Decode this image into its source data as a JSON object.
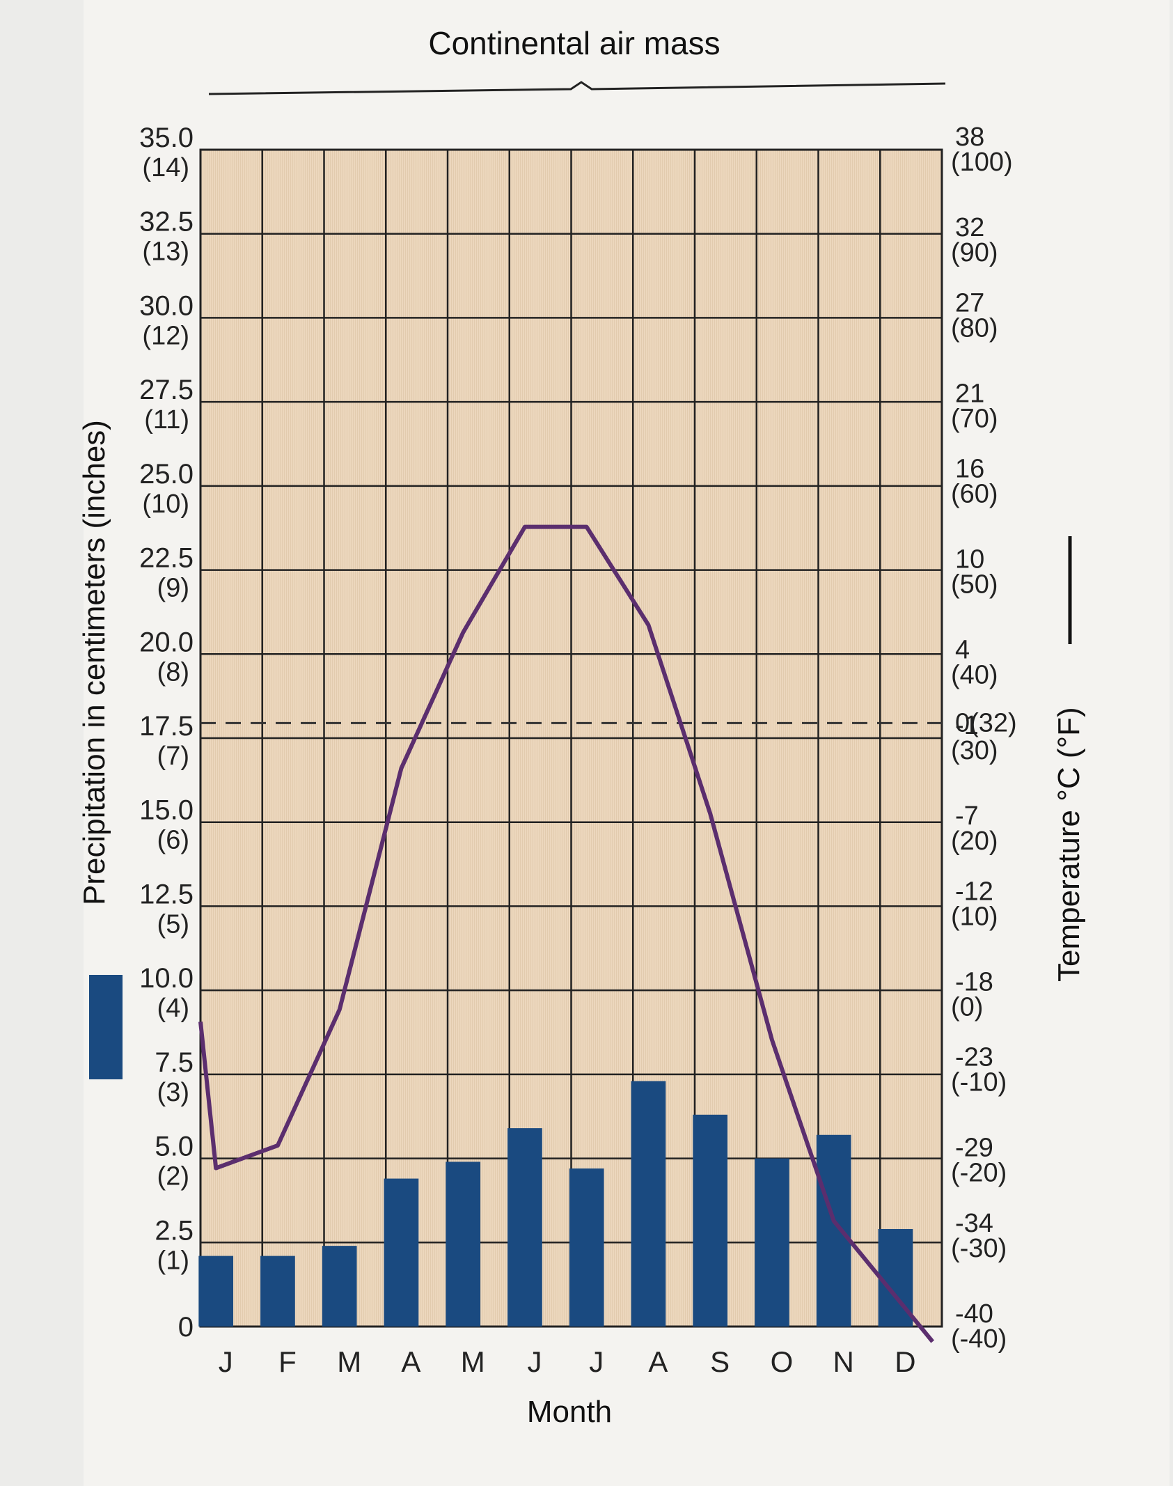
{
  "chart_data": {
    "type": "climograph",
    "title": "Continental air mass",
    "xlabel": "Month",
    "categories": [
      "J",
      "F",
      "M",
      "A",
      "M",
      "J",
      "J",
      "A",
      "S",
      "O",
      "N",
      "D"
    ],
    "left_axis": {
      "label": "Precipitation in centimeters (inches)",
      "ticks": [
        {
          "value": 0,
          "label": "0",
          "sub": ""
        },
        {
          "value": 2.5,
          "label": "2.5",
          "sub": "(1)"
        },
        {
          "value": 5.0,
          "label": "5.0",
          "sub": "(2)"
        },
        {
          "value": 7.5,
          "label": "7.5",
          "sub": "(3)"
        },
        {
          "value": 10.0,
          "label": "10.0",
          "sub": "(4)"
        },
        {
          "value": 12.5,
          "label": "12.5",
          "sub": "(5)"
        },
        {
          "value": 15.0,
          "label": "15.0",
          "sub": "(6)"
        },
        {
          "value": 17.5,
          "label": "17.5",
          "sub": "(7)"
        },
        {
          "value": 20.0,
          "label": "20.0",
          "sub": "(8)"
        },
        {
          "value": 22.5,
          "label": "22.5",
          "sub": "(9)"
        },
        {
          "value": 25.0,
          "label": "25.0",
          "sub": "(10)"
        },
        {
          "value": 27.5,
          "label": "27.5",
          "sub": "(11)"
        },
        {
          "value": 30.0,
          "label": "30.0",
          "sub": "(12)"
        },
        {
          "value": 32.5,
          "label": "32.5",
          "sub": "(13)"
        },
        {
          "value": 35.0,
          "label": "35.0",
          "sub": "(14)"
        }
      ],
      "ylim": [
        0,
        35
      ]
    },
    "right_axis": {
      "label": "Temperature °C (°F)",
      "ticks": [
        {
          "value": -40,
          "label": "-40",
          "sub": "(-40)"
        },
        {
          "value": -34,
          "label": "-34",
          "sub": "(-30)"
        },
        {
          "value": -29,
          "label": "-29",
          "sub": "(-20)"
        },
        {
          "value": -23,
          "label": "-23",
          "sub": "(-10)"
        },
        {
          "value": -18,
          "label": "-18",
          "sub": "(0)"
        },
        {
          "value": -12,
          "label": "-12",
          "sub": "(10)"
        },
        {
          "value": -7,
          "label": "-7",
          "sub": "(20)"
        },
        {
          "value": -1,
          "label": "-1",
          "sub": "(30)"
        },
        {
          "value": 0,
          "label": "0(32)",
          "sub": ""
        },
        {
          "value": 4,
          "label": "4",
          "sub": "(40)"
        },
        {
          "value": 10,
          "label": "10",
          "sub": "(50)"
        },
        {
          "value": 16,
          "label": "16",
          "sub": "(60)"
        },
        {
          "value": 21,
          "label": "21",
          "sub": "(70)"
        },
        {
          "value": 27,
          "label": "27",
          "sub": "(80)"
        },
        {
          "value": 32,
          "label": "32",
          "sub": "(90)"
        },
        {
          "value": 38,
          "label": "38",
          "sub": "(100)"
        }
      ],
      "ylim": [
        -40,
        38
      ],
      "reference_line": {
        "value": 0,
        "style": "dashed"
      }
    },
    "series": [
      {
        "name": "Precipitation in centimeters (inches)",
        "type": "bar",
        "axis": "left",
        "values": [
          2.1,
          2.1,
          2.4,
          4.4,
          4.9,
          5.9,
          4.7,
          7.3,
          6.3,
          5.0,
          5.7,
          2.9
        ]
      },
      {
        "name": "Temperature °C (°F)",
        "type": "line",
        "axis": "right",
        "values": [
          -29.5,
          -28,
          -19,
          -3,
          6,
          13,
          13,
          6.5,
          -6,
          -21,
          -33,
          -41
        ]
      }
    ],
    "colors": {
      "bar": "#1a4a80",
      "line": "#5b2e6e",
      "plot_bg": "#ecd7bd",
      "grid": "#222222"
    },
    "grid": true
  }
}
